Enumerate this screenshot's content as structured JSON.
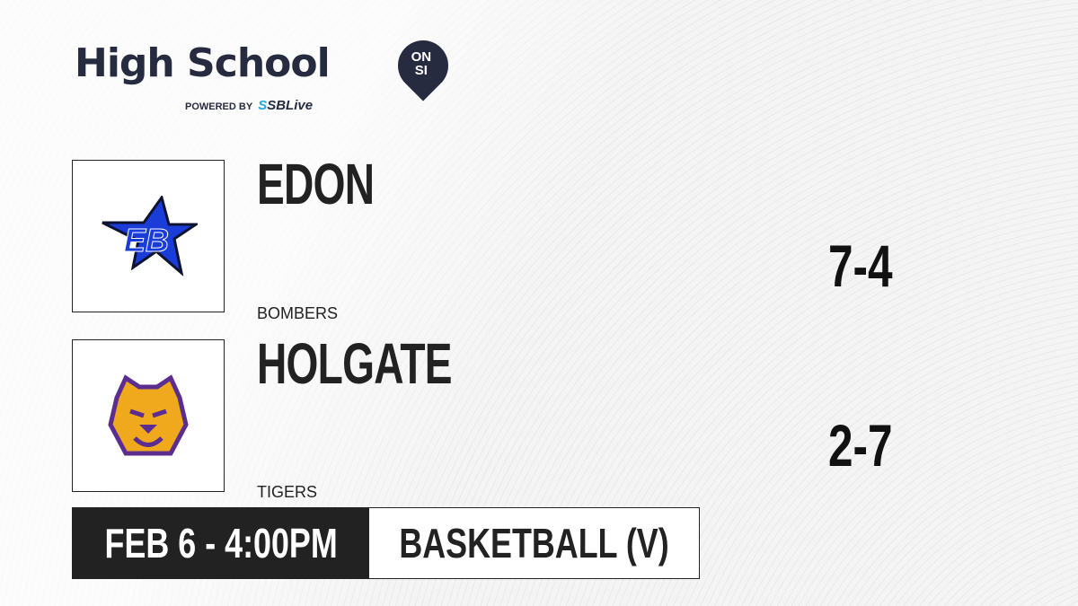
{
  "brand": {
    "title": "High School",
    "badge_top": "ON",
    "badge_bottom": "SI",
    "powered_by": "POWERED BY",
    "partner_s": "S",
    "partner": "SBLive"
  },
  "home": {
    "name": "EDON",
    "mascot": "BOMBERS",
    "record": "7-4",
    "logo_text": "EB",
    "colors": {
      "primary": "#1a3cd8",
      "secondary": "#0d1330"
    }
  },
  "away": {
    "name": "HOLGATE",
    "mascot": "TIGERS",
    "record": "2-7",
    "colors": {
      "primary": "#5b2d91",
      "secondary": "#f0a81c"
    }
  },
  "event": {
    "datetime": "FEB 6 - 4:00PM",
    "sport": "BASKETBALL (V)"
  }
}
